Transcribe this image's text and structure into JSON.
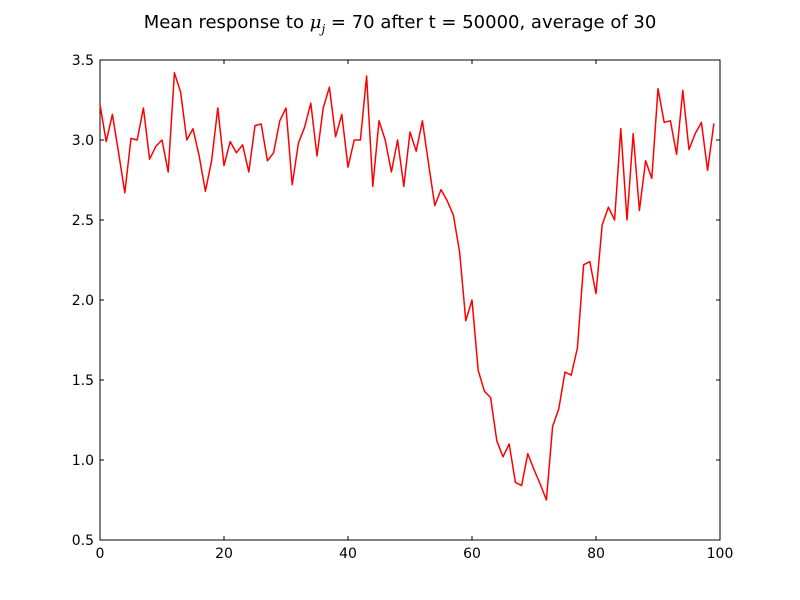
{
  "chart_data": {
    "type": "line",
    "title": {
      "prefix": "Mean response to ",
      "symbol": "μ",
      "subscript": "j",
      "suffix": " = 70 after t = 50000, average of 30"
    },
    "xlabel": "",
    "ylabel": "",
    "xlim": [
      0,
      100
    ],
    "ylim": [
      0.5,
      3.5
    ],
    "xticks": [
      0,
      20,
      40,
      60,
      80,
      100
    ],
    "xtick_labels": [
      "0",
      "20",
      "40",
      "60",
      "80",
      "100"
    ],
    "yticks": [
      0.5,
      1.0,
      1.5,
      2.0,
      2.5,
      3.0,
      3.5
    ],
    "ytick_labels": [
      "0.5",
      "1.0",
      "1.5",
      "2.0",
      "2.5",
      "3.0",
      "3.5"
    ],
    "grid": false,
    "legend": null,
    "series": [
      {
        "color": "#ff0000",
        "x": [
          0,
          1,
          2,
          3,
          4,
          5,
          6,
          7,
          8,
          9,
          10,
          11,
          12,
          13,
          14,
          15,
          16,
          17,
          18,
          19,
          20,
          21,
          22,
          23,
          24,
          25,
          26,
          27,
          28,
          29,
          30,
          31,
          32,
          33,
          34,
          35,
          36,
          37,
          38,
          39,
          40,
          41,
          42,
          43,
          44,
          45,
          46,
          47,
          48,
          49,
          50,
          51,
          52,
          53,
          54,
          55,
          56,
          57,
          58,
          59,
          60,
          61,
          62,
          63,
          64,
          65,
          66,
          67,
          68,
          69,
          70,
          71,
          72,
          73,
          74,
          75,
          76,
          77,
          78,
          79,
          80,
          81,
          82,
          83,
          84,
          85,
          86,
          87,
          88,
          89,
          90,
          91,
          92,
          93,
          94,
          95,
          96,
          97,
          98,
          99
        ],
        "y": [
          3.22,
          2.99,
          3.16,
          2.92,
          2.67,
          3.01,
          3.0,
          3.2,
          2.88,
          2.96,
          3.0,
          2.8,
          3.42,
          3.3,
          3.0,
          3.07,
          2.9,
          2.68,
          2.87,
          3.2,
          2.84,
          2.99,
          2.92,
          2.97,
          2.8,
          3.09,
          3.1,
          2.87,
          2.92,
          3.12,
          3.2,
          2.72,
          2.98,
          3.08,
          3.23,
          2.9,
          3.2,
          3.33,
          3.02,
          3.16,
          2.83,
          3.0,
          3.0,
          3.4,
          2.71,
          3.12,
          3.0,
          2.8,
          3.0,
          2.71,
          3.05,
          2.93,
          3.12,
          2.85,
          2.59,
          2.69,
          2.62,
          2.53,
          2.3,
          1.87,
          2.0,
          1.56,
          1.43,
          1.39,
          1.12,
          1.02,
          1.1,
          0.86,
          0.84,
          1.04,
          0.94,
          0.85,
          0.75,
          1.21,
          1.32,
          1.55,
          1.53,
          1.7,
          2.22,
          2.24,
          2.04,
          2.47,
          2.58,
          2.5,
          3.07,
          2.5,
          3.04,
          2.56,
          2.87,
          2.76,
          3.32,
          3.11,
          3.12,
          2.91,
          3.31,
          2.94,
          3.04,
          3.11,
          2.81,
          3.1
        ]
      }
    ]
  }
}
